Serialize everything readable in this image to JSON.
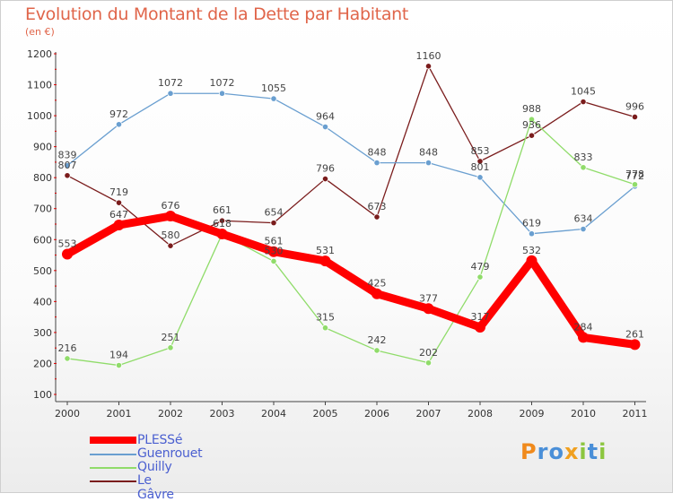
{
  "title": "Evolution du Montant de la Dette par Habitant",
  "subtitle": "(en €)",
  "logo_text": "Proxiti",
  "chart_data": {
    "type": "line",
    "x": [
      "2000",
      "2001",
      "2002",
      "2003",
      "2004",
      "2005",
      "2006",
      "2007",
      "2008",
      "2009",
      "2010",
      "2011"
    ],
    "ylim": [
      100,
      1200
    ],
    "yticks": [
      100,
      200,
      300,
      400,
      500,
      600,
      700,
      800,
      900,
      1000,
      1100,
      1200
    ],
    "grid": false,
    "legend_position": "bottom-left",
    "series": [
      {
        "name": "PLESSé",
        "color": "#ff0000",
        "values": [
          553,
          647,
          676,
          618,
          561,
          531,
          425,
          377,
          317,
          532,
          284,
          261
        ]
      },
      {
        "name": "Guenrouet",
        "color": "#6a9fd0",
        "values": [
          839,
          972,
          1072,
          1072,
          1055,
          964,
          848,
          848,
          801,
          619,
          634,
          772
        ]
      },
      {
        "name": "Quilly",
        "color": "#90dc6a",
        "values": [
          216,
          194,
          251,
          618,
          530,
          315,
          242,
          202,
          479,
          988,
          833,
          778
        ]
      },
      {
        "name": "Le Gâvre",
        "color": "#7a1c1c",
        "values": [
          807,
          719,
          580,
          661,
          654,
          796,
          673,
          1160,
          853,
          936,
          1045,
          996
        ]
      }
    ],
    "data_labels": [
      {
        "series": 0,
        "labels": [
          "553",
          "647",
          "676",
          "",
          "561",
          "531",
          "425",
          "377",
          "317",
          "532",
          "284",
          "261"
        ]
      },
      {
        "series": 1,
        "labels": [
          "839",
          "972",
          "1072",
          "1072",
          "1055",
          "964",
          "848",
          "848",
          "801",
          "619",
          "634",
          "772"
        ]
      },
      {
        "series": 2,
        "labels": [
          "216",
          "194",
          "251",
          "618",
          "530",
          "315",
          "242",
          "202",
          "479",
          "988",
          "833",
          "778"
        ]
      },
      {
        "series": 3,
        "labels": [
          "807",
          "719",
          "580",
          "661",
          "654",
          "796",
          "673",
          "1160",
          "853",
          "936",
          "1045",
          "996"
        ]
      }
    ]
  }
}
